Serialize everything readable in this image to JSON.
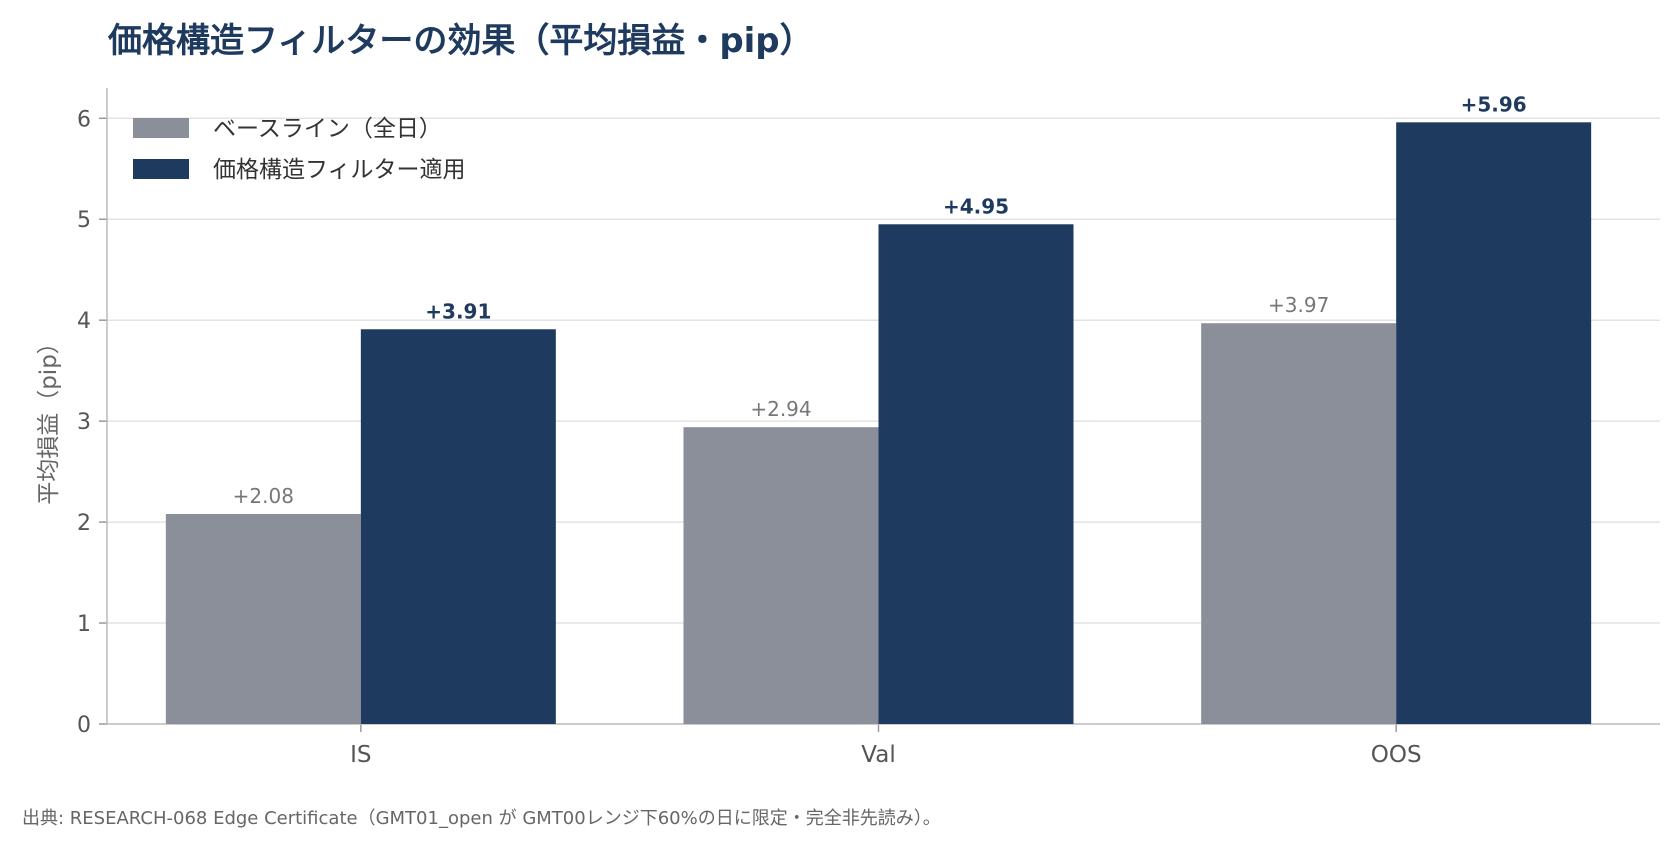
{
  "chart_data": {
    "type": "bar",
    "title": "価格構造フィルターの効果（平均損益・pip）",
    "xlabel": "",
    "ylabel": "平均損益（pip）",
    "categories": [
      "IS",
      "Val",
      "OOS"
    ],
    "series": [
      {
        "name": "ベースライン（全日）",
        "values": [
          2.08,
          2.94,
          3.97
        ],
        "labels": [
          "+2.08",
          "+2.94",
          "+3.97"
        ],
        "color": "#8b8f9a"
      },
      {
        "name": "価格構造フィルター適用",
        "values": [
          3.91,
          4.95,
          5.96
        ],
        "labels": [
          "+3.91",
          "+4.95",
          "+5.96"
        ],
        "color": "#1f3a5f"
      }
    ],
    "ylim": [
      0,
      6.3
    ],
    "yticks": [
      "0",
      "1",
      "2",
      "3",
      "4",
      "5",
      "6"
    ],
    "grid": "horizontal",
    "legend_position": "top-left"
  },
  "source": "出典: RESEARCH-068 Edge Certificate（GMT01_open が GMT00レンジ下60%の日に限定・完全非先読み）。"
}
